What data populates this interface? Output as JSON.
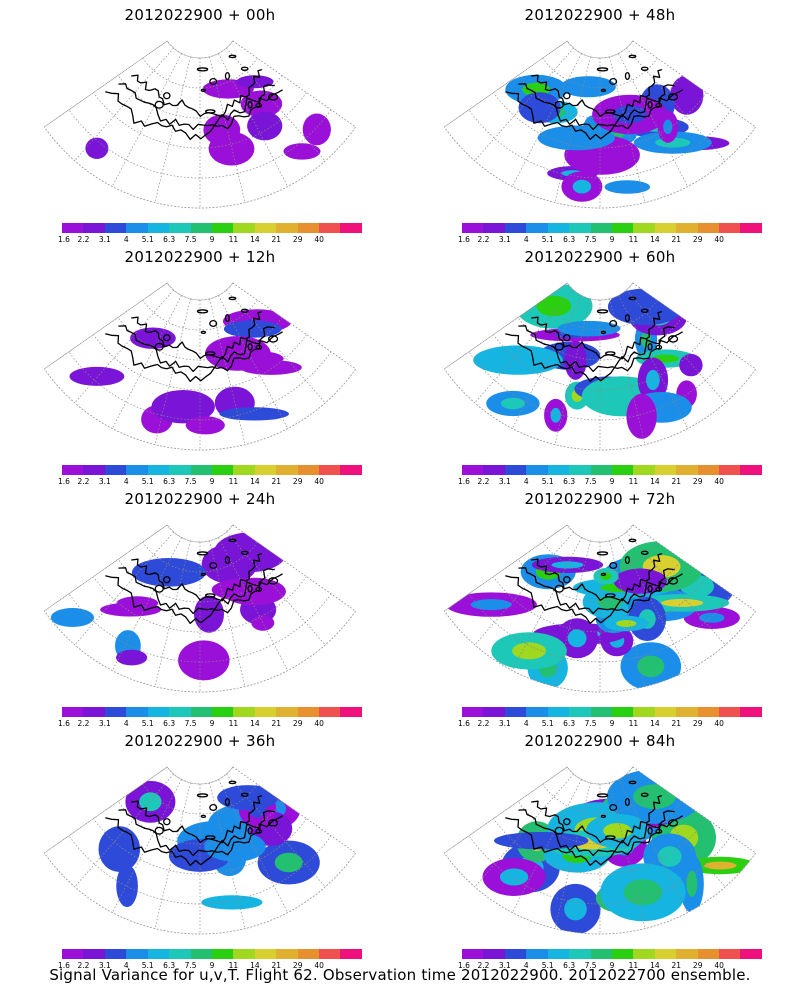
{
  "caption": "Signal Variance for u,v,T. Flight 62. Observation time 2012022900. 2012022700 ensemble.",
  "panels": [
    {
      "title": "2012022900 + 00h",
      "intensity": 0.12
    },
    {
      "title": "2012022900 + 48h",
      "intensity": 0.55
    },
    {
      "title": "2012022900 + 12h",
      "intensity": 0.25
    },
    {
      "title": "2012022900 + 60h",
      "intensity": 0.65
    },
    {
      "title": "2012022900 + 24h",
      "intensity": 0.35
    },
    {
      "title": "2012022900 + 72h",
      "intensity": 0.8
    },
    {
      "title": "2012022900 + 36h",
      "intensity": 0.45
    },
    {
      "title": "2012022900 + 84h",
      "intensity": 0.95
    }
  ],
  "colorbar": {
    "labels": [
      "1.6",
      "2.2",
      "3.1",
      "4",
      "5.1",
      "6.3",
      "7.5",
      "9",
      "11",
      "14",
      "21",
      "29",
      "40"
    ],
    "colors": [
      "#9b10d8",
      "#7a14d6",
      "#2e4ad8",
      "#1a8ee8",
      "#16b4e0",
      "#1ec8b8",
      "#22c070",
      "#2ad010",
      "#a0d820",
      "#d8d030",
      "#e0b030",
      "#e89030",
      "#f05050",
      "#f0107c"
    ]
  }
}
